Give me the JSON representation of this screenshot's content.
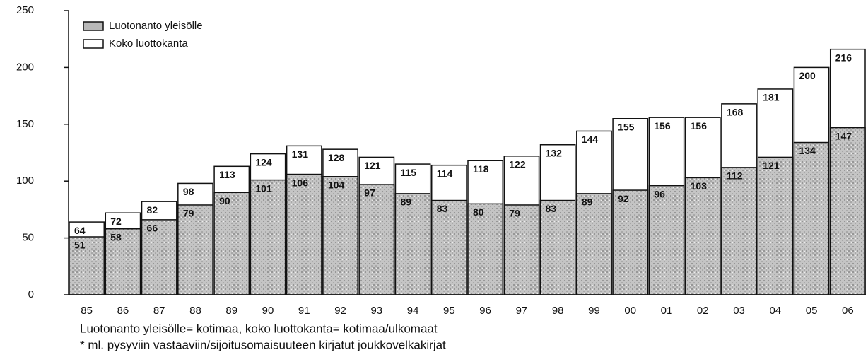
{
  "chart_data": {
    "type": "bar",
    "categories": [
      "85",
      "86",
      "87",
      "88",
      "89",
      "90",
      "91",
      "92",
      "93",
      "94",
      "95",
      "96",
      "97",
      "98",
      "99",
      "00",
      "01",
      "02",
      "03",
      "04",
      "05",
      "06"
    ],
    "series": [
      {
        "name": "Luotonanto yleisölle",
        "color": "#b8b8b8",
        "values": [
          51,
          58,
          66,
          79,
          90,
          101,
          106,
          104,
          97,
          89,
          83,
          80,
          79,
          83,
          89,
          92,
          96,
          103,
          112,
          121,
          134,
          147
        ]
      },
      {
        "name": "Koko luottokanta",
        "color": "#ffffff",
        "values": [
          64,
          72,
          82,
          98,
          113,
          124,
          131,
          128,
          121,
          115,
          114,
          118,
          122,
          132,
          144,
          155,
          156,
          156,
          168,
          181,
          200,
          216
        ]
      }
    ],
    "ylim": [
      0,
      250
    ],
    "yticks": [
      0,
      50,
      100,
      150,
      200,
      250
    ],
    "legend": "top-left",
    "notes": [
      "Luotonanto yleisölle= kotimaa, koko luottokanta= kotimaa/ulkomaat",
      "* ml. pysyviin vastaaviin/sijoitusomaisuuteen kirjatut joukkovelkakirjat"
    ]
  }
}
